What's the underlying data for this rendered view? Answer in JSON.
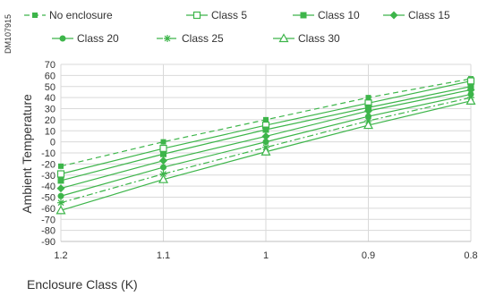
{
  "document_id": "DM107915",
  "chart_data": {
    "type": "line",
    "title": "",
    "xlabel": "Enclosure Class (K)",
    "ylabel": "Ambient Temperature",
    "x": [
      1.2,
      1.1,
      1,
      0.9,
      0.8
    ],
    "x_tick_labels": [
      "1.2",
      "1.1",
      "1",
      "0.9",
      "0.8"
    ],
    "x_reversed": true,
    "ylim": [
      -90,
      70
    ],
    "y_ticks": [
      70,
      60,
      50,
      40,
      30,
      20,
      10,
      0,
      -10,
      -20,
      -30,
      -40,
      -50,
      -60,
      -70,
      -80,
      -90
    ],
    "grid": true,
    "legend_position": "top",
    "color": "#3db54a",
    "series": [
      {
        "name": "No enclosure",
        "marker": "filled-square-small",
        "dash": "6,4",
        "values": [
          -22,
          0,
          20,
          40,
          57
        ]
      },
      {
        "name": "Class 5",
        "marker": "open-square",
        "dash": "",
        "values": [
          -29,
          -6,
          15,
          35,
          55
        ]
      },
      {
        "name": "Class 10",
        "marker": "filled-square",
        "dash": "",
        "values": [
          -35,
          -11,
          11,
          31,
          50
        ]
      },
      {
        "name": "Class 15",
        "marker": "filled-diamond",
        "dash": "",
        "values": [
          -42,
          -17,
          5,
          28,
          47
        ]
      },
      {
        "name": "Class 20",
        "marker": "filled-circle",
        "dash": "",
        "values": [
          -49,
          -23,
          0,
          23,
          43
        ]
      },
      {
        "name": "Class 25",
        "marker": "asterisk",
        "dash": "7,3,2,3",
        "values": [
          -55,
          -29,
          -5,
          19,
          40
        ]
      },
      {
        "name": "Class 30",
        "marker": "open-triangle",
        "dash": "",
        "values": [
          -62,
          -34,
          -9,
          15,
          37
        ]
      }
    ]
  }
}
